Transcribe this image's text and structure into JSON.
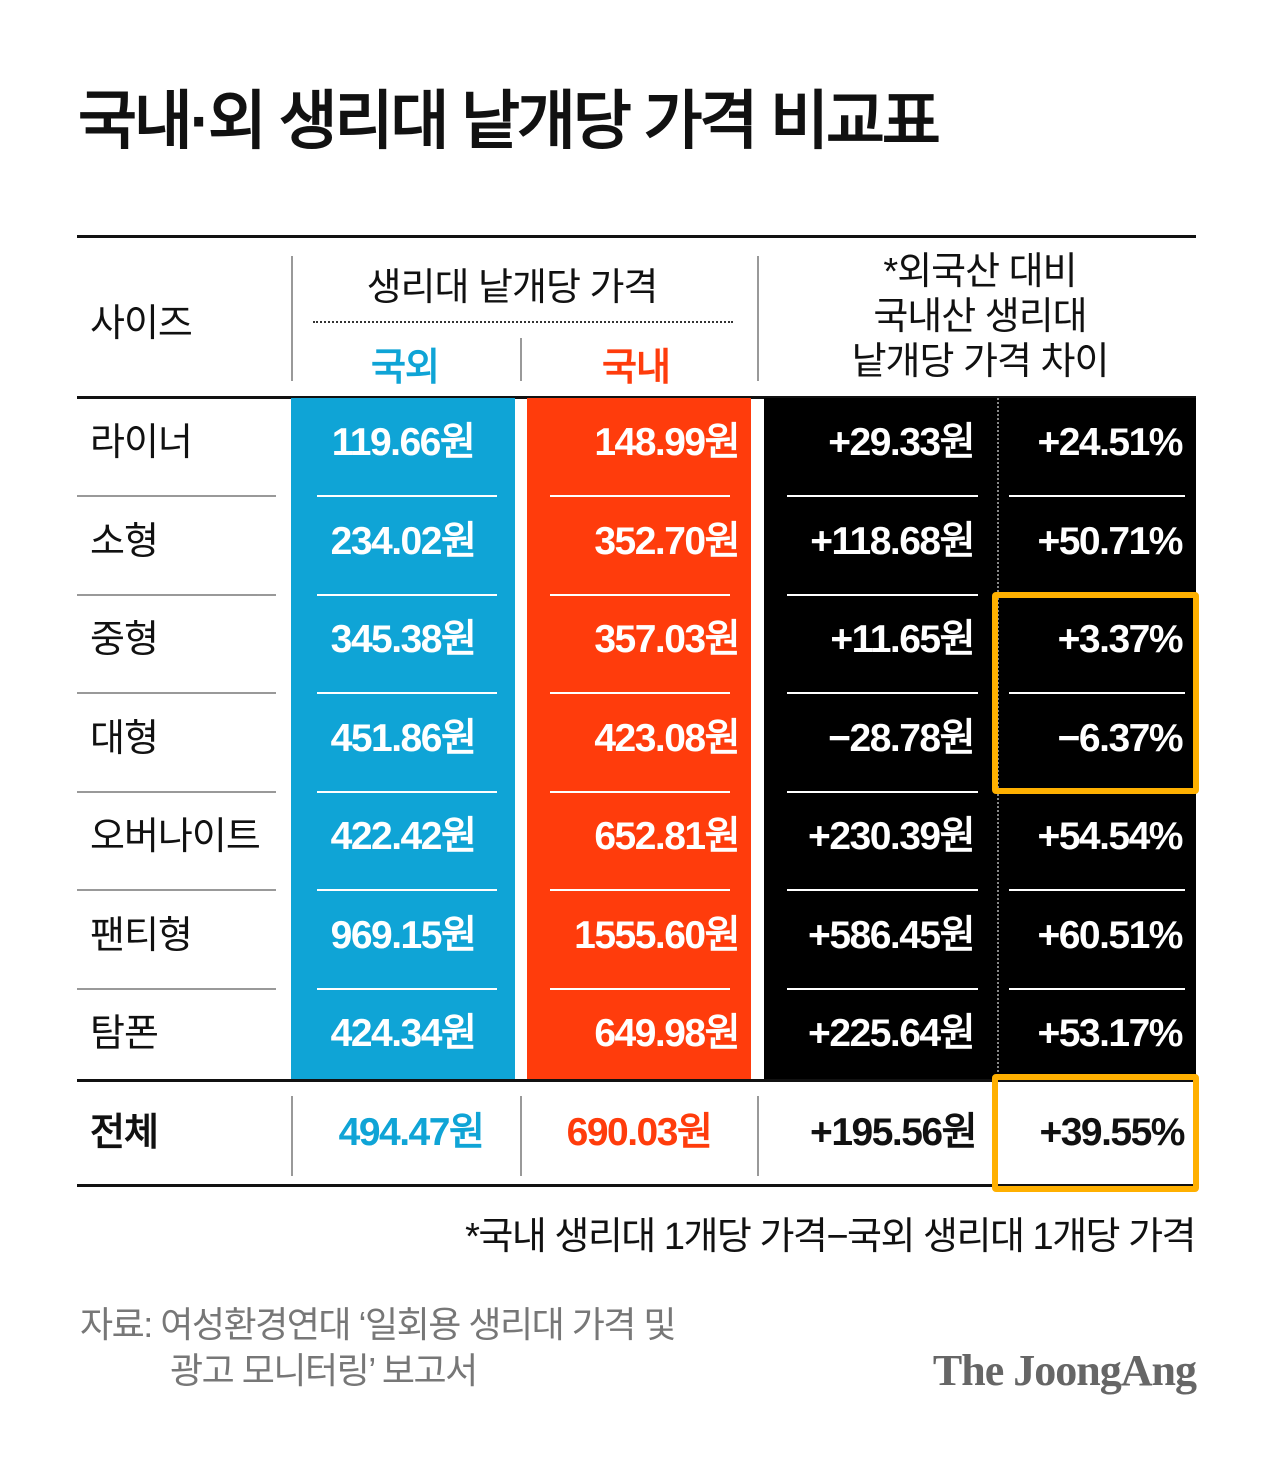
{
  "title": "국내·외 생리대 낱개당 가격 비교표",
  "header": {
    "size": "사이즈",
    "price_group": "생리대 낱개당 가격",
    "foreign": "국외",
    "domestic": "국내",
    "diff_lines": [
      "*외국산 대비",
      "국내산 생리대",
      "낱개당 가격 차이"
    ]
  },
  "colors": {
    "foreign": "#0fa4d6",
    "domestic": "#ff3c0c",
    "diff_bg": "#000000",
    "highlight": "#ffb000"
  },
  "chart_data": {
    "type": "table",
    "columns": [
      "사이즈",
      "국외",
      "국내",
      "가격 차이(원)",
      "가격 차이(%)"
    ],
    "rows": [
      {
        "size": "라이너",
        "foreign": "119.66원",
        "domestic": "148.99원",
        "diff": "+29.33원",
        "pct": "+24.51%"
      },
      {
        "size": "소형",
        "foreign": "234.02원",
        "domestic": "352.70원",
        "diff": "+118.68원",
        "pct": "+50.71%"
      },
      {
        "size": "중형",
        "foreign": "345.38원",
        "domestic": "357.03원",
        "diff": "+11.65원",
        "pct": "+3.37%"
      },
      {
        "size": "대형",
        "foreign": "451.86원",
        "domestic": "423.08원",
        "diff": "−28.78원",
        "pct": "−6.37%"
      },
      {
        "size": "오버나이트",
        "foreign": "422.42원",
        "domestic": "652.81원",
        "diff": "+230.39원",
        "pct": "+54.54%"
      },
      {
        "size": "팬티형",
        "foreign": "969.15원",
        "domestic": "1555.60원",
        "diff": "+586.45원",
        "pct": "+60.51%"
      },
      {
        "size": "탐폰",
        "foreign": "424.34원",
        "domestic": "649.98원",
        "diff": "+225.64원",
        "pct": "+53.17%"
      }
    ],
    "total": {
      "size": "전체",
      "foreign": "494.47원",
      "domestic": "690.03원",
      "diff": "+195.56원",
      "pct": "+39.55%"
    },
    "highlighted": [
      "중형 %",
      "대형 %",
      "전체 %"
    ]
  },
  "footnote": "*국내 생리대 1개당 가격−국외 생리대 1개당 가격",
  "source_lines": [
    "자료: 여성환경연대 ‘일회용 생리대 가격 및",
    "광고 모니터링’ 보고서"
  ],
  "logo": "The JoongAng"
}
